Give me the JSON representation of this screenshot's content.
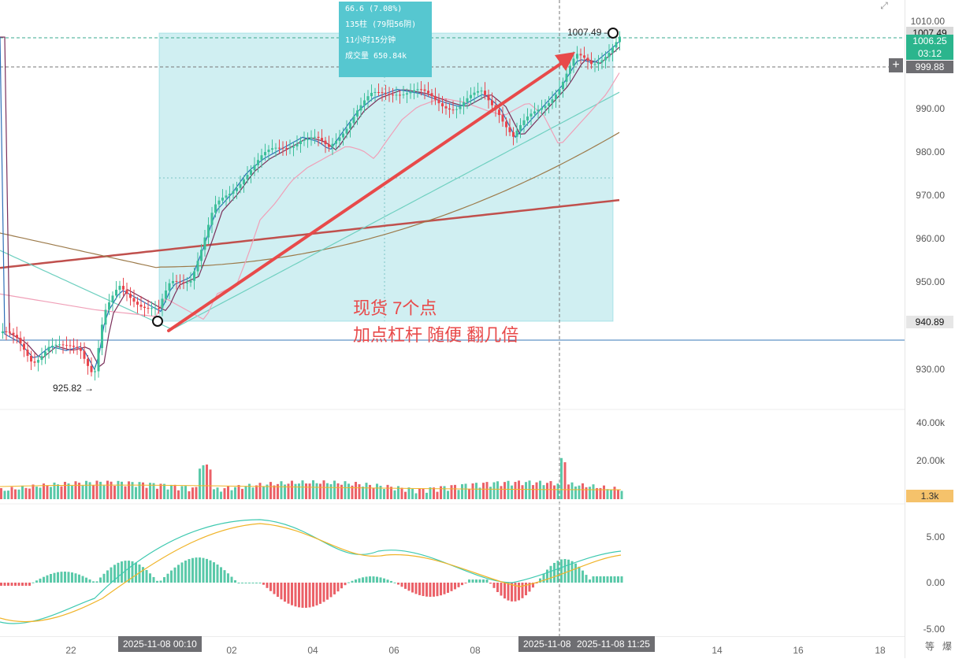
{
  "price_axis": {
    "labels": [
      "1010.00",
      "990.00",
      "980.00",
      "970.00",
      "960.00",
      "950.00",
      "930.00"
    ],
    "tag_high": "1007.49",
    "tag_mid": "1006.25",
    "tag_countdown": "03:12",
    "tag_cursor": "999.88",
    "tag_low": "940.89"
  },
  "volume_axis": {
    "labels": [
      "40.00k",
      "20.00k"
    ],
    "tag_value": "1.3k"
  },
  "macd_axis": {
    "labels": [
      "5.00",
      "0.00",
      "-5.00"
    ]
  },
  "time_axis": {
    "ticks": [
      "22",
      "02",
      "04",
      "06",
      "08",
      "14",
      "16",
      "18"
    ],
    "pill_start": "2025-11-08 00:10",
    "pill_cursor": "2025-11-08",
    "pill_end": "2025-11-08 11:25"
  },
  "measure_box": {
    "line1": "66.6 (7.08%)",
    "line2": "135柱 (79阳56阴)",
    "line3": "11小时15分钟",
    "line4": "成交量 650.84k"
  },
  "annotation": {
    "line1": "现货 7个点",
    "line2": "加点杠杆 随便 翻几倍"
  },
  "markers": {
    "low": "925.82",
    "high": "1007.49"
  },
  "bottom_right": {
    "label1": "等",
    "label2": "爆"
  },
  "colors": {
    "up": "#3dbf9a",
    "down": "#e8454d",
    "measure_fill": "#56c7d0",
    "arrow": "#e84a4a",
    "volume_tag": "#f5c26b"
  },
  "icons": {
    "plus": "+",
    "corner": "⤢"
  }
}
